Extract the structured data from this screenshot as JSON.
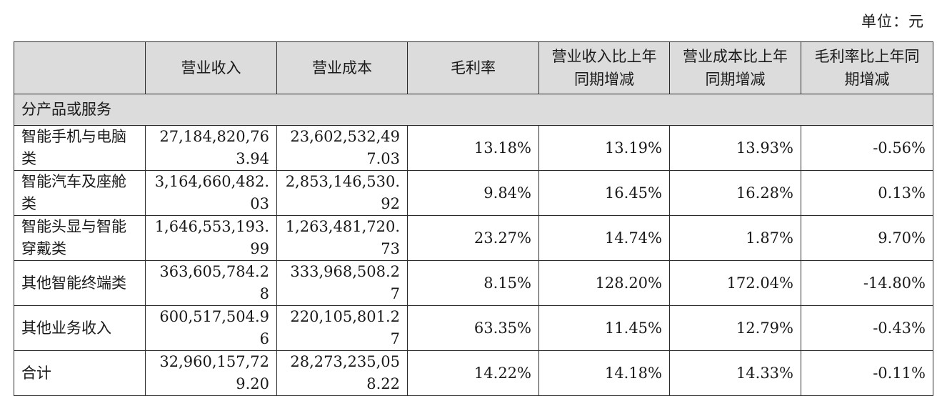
{
  "unit_label": "单位：元",
  "table": {
    "headers": [
      "",
      "营业收入",
      "营业成本",
      "毛利率",
      "营业收入比上年同期增减",
      "营业成本比上年同期增减",
      "毛利率比上年同期增减"
    ],
    "section_label": "分产品或服务",
    "rows": [
      {
        "name": "智能手机与电脑类",
        "revenue": "27,184,820,763.94",
        "cost": "23,602,532,497.03",
        "margin": "13.18%",
        "rev_change": "13.19%",
        "cost_change": "13.93%",
        "margin_change": "-0.56%"
      },
      {
        "name": "智能汽车及座舱类",
        "revenue": "3,164,660,482.03",
        "cost": "2,853,146,530.92",
        "margin": "9.84%",
        "rev_change": "16.45%",
        "cost_change": "16.28%",
        "margin_change": "0.13%"
      },
      {
        "name": "智能头显与智能穿戴类",
        "revenue": "1,646,553,193.99",
        "cost": "1,263,481,720.73",
        "margin": "23.27%",
        "rev_change": "14.74%",
        "cost_change": "1.87%",
        "margin_change": "9.70%"
      },
      {
        "name": "其他智能终端类",
        "revenue": "363,605,784.28",
        "cost": "333,968,508.27",
        "margin": "8.15%",
        "rev_change": "128.20%",
        "cost_change": "172.04%",
        "margin_change": "-14.80%"
      },
      {
        "name": "其他业务收入",
        "revenue": "600,517,504.96",
        "cost": "220,105,801.27",
        "margin": "63.35%",
        "rev_change": "11.45%",
        "cost_change": "12.79%",
        "margin_change": "-0.43%"
      },
      {
        "name": "合计",
        "revenue": "32,960,157,729.20",
        "cost": "28,273,235,058.22",
        "margin": "14.22%",
        "rev_change": "14.18%",
        "cost_change": "14.33%",
        "margin_change": "-0.11%"
      }
    ]
  }
}
